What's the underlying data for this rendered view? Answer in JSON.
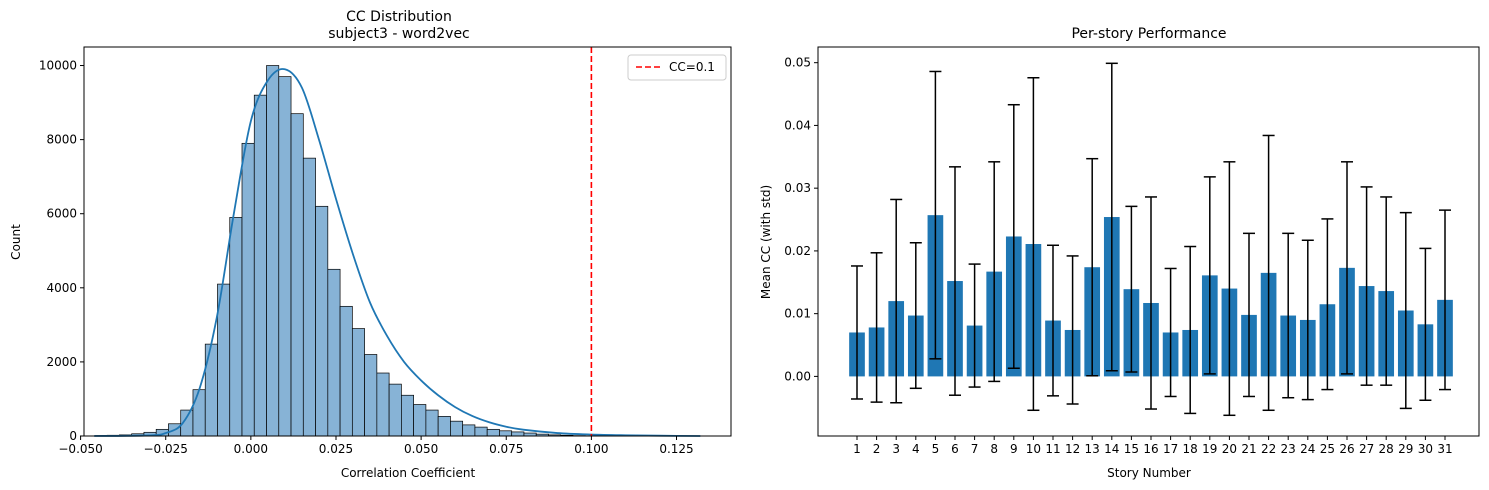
{
  "chart_data": [
    {
      "type": "bar",
      "subtype": "histogram-with-kde",
      "title": "CC Distribution",
      "subtitle": "subject3 - word2vec",
      "xlabel": "Correlation Coefficient",
      "ylabel": "Count",
      "xlim": [
        -0.049,
        0.141
      ],
      "ylim": [
        0,
        10500
      ],
      "xticks": [
        -0.05,
        -0.025,
        0.0,
        0.025,
        0.05,
        0.075,
        0.1,
        0.125
      ],
      "xtick_labels": [
        "−0.050",
        "−0.025",
        "0.000",
        "0.025",
        "0.050",
        "0.075",
        "0.100",
        "0.125"
      ],
      "yticks": [
        0,
        2000,
        4000,
        6000,
        8000,
        10000
      ],
      "ytick_labels": [
        "0",
        "2000",
        "4000",
        "6000",
        "8000",
        "10000"
      ],
      "bin_start": -0.0458,
      "bin_width": 0.0036,
      "values": [
        10,
        20,
        30,
        60,
        100,
        180,
        330,
        700,
        1250,
        2480,
        4100,
        5900,
        7900,
        9200,
        10000,
        9700,
        8700,
        7500,
        6200,
        4500,
        3500,
        2900,
        2200,
        1700,
        1400,
        1100,
        850,
        700,
        530,
        400,
        300,
        240,
        180,
        140,
        110,
        80,
        50,
        30,
        20,
        10,
        5,
        3,
        2,
        1,
        1,
        1,
        0,
        0,
        1,
        0
      ],
      "kde": {
        "x": [
          -0.046,
          -0.03,
          -0.025,
          -0.02,
          -0.015,
          -0.01,
          -0.005,
          0.0,
          0.005,
          0.01,
          0.015,
          0.02,
          0.025,
          0.03,
          0.035,
          0.04,
          0.045,
          0.05,
          0.055,
          0.06,
          0.065,
          0.07,
          0.075,
          0.08,
          0.09,
          0.1,
          0.11,
          0.12,
          0.132
        ],
        "y": [
          0,
          15,
          80,
          350,
          1300,
          3200,
          6000,
          8500,
          9600,
          9900,
          9400,
          8000,
          6400,
          4900,
          3600,
          2700,
          2000,
          1500,
          1100,
          780,
          540,
          370,
          250,
          170,
          80,
          40,
          20,
          8,
          0
        ]
      },
      "reference_line": {
        "x": 0.1,
        "label": "CC=0.1",
        "color": "#ff0000"
      },
      "legend": {
        "position": "top-right",
        "entries": [
          "CC=0.1"
        ]
      },
      "colors": {
        "bar_fill": "#87b3d6",
        "bar_edge": "#000000",
        "kde": "#1f77b4"
      },
      "grid": false
    },
    {
      "type": "bar",
      "subtype": "bar-with-error-bars",
      "title": "Per-story Performance",
      "xlabel": "Story Number",
      "ylabel": "Mean CC (with std)",
      "ylim": [
        -0.0095,
        0.0525
      ],
      "yticks": [
        0.0,
        0.01,
        0.02,
        0.03,
        0.04,
        0.05
      ],
      "ytick_labels": [
        "0.00",
        "0.01",
        "0.02",
        "0.03",
        "0.04",
        "0.05"
      ],
      "categories": [
        "1",
        "2",
        "3",
        "4",
        "5",
        "6",
        "7",
        "8",
        "9",
        "10",
        "11",
        "12",
        "13",
        "14",
        "15",
        "16",
        "17",
        "18",
        "19",
        "20",
        "21",
        "22",
        "23",
        "24",
        "25",
        "26",
        "27",
        "28",
        "29",
        "30",
        "31"
      ],
      "values": [
        0.007,
        0.0078,
        0.012,
        0.0097,
        0.0257,
        0.0152,
        0.0081,
        0.0167,
        0.0223,
        0.0211,
        0.0089,
        0.0074,
        0.0174,
        0.0254,
        0.0139,
        0.0117,
        0.007,
        0.0074,
        0.0161,
        0.014,
        0.0098,
        0.0165,
        0.0097,
        0.009,
        0.0115,
        0.0173,
        0.0144,
        0.0136,
        0.0105,
        0.0083,
        0.0122
      ],
      "errors": [
        0.0106,
        0.0119,
        0.0162,
        0.0116,
        0.0229,
        0.0182,
        0.0098,
        0.0175,
        0.021,
        0.0265,
        0.012,
        0.0118,
        0.0173,
        0.0245,
        0.0132,
        0.0169,
        0.0102,
        0.0133,
        0.0157,
        0.0202,
        0.013,
        0.0219,
        0.0131,
        0.0127,
        0.0136,
        0.0169,
        0.0158,
        0.015,
        0.0156,
        0.0121,
        0.0143
      ],
      "colors": {
        "bar_fill": "#1f77b4",
        "error": "#000000"
      },
      "grid": false
    }
  ]
}
